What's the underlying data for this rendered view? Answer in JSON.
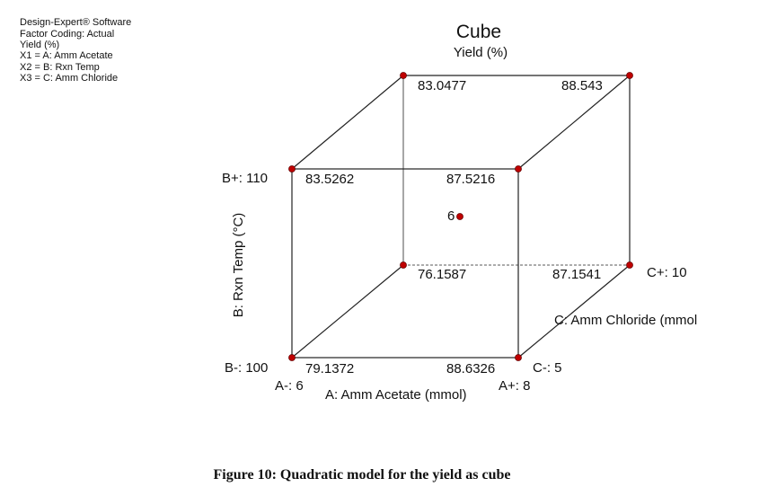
{
  "header": {
    "lines": [
      "Design-Expert® Software",
      "Factor Coding: Actual",
      "Yield (%)",
      "X1 = A: Amm Acetate",
      "X2 = B: Rxn Temp",
      "X3 = C: Amm Chloride"
    ]
  },
  "title": "Cube",
  "subtitle": "Yield (%)",
  "corners": {
    "back_top_left": "83.0477",
    "back_top_right": "88.543",
    "front_top_left": "83.5262",
    "front_top_right": "87.5216",
    "back_bottom_left": "76.1587",
    "back_bottom_right": "87.1541",
    "front_bottom_left": "79.1372",
    "front_bottom_right": "88.6326"
  },
  "center_points": "6",
  "axes": {
    "b_label": "B: Rxn Temp (°C)",
    "a_label": "A: Amm Acetate (mmol)",
    "c_label": "C: Amm Chloride (mmol",
    "b_high": "B+: 110",
    "b_low": "B-: 100",
    "a_low": "A-: 6",
    "a_high": "A+: 8",
    "c_low": "C-: 5",
    "c_high": "C+: 10"
  },
  "caption": "Figure 10: Quadratic model for the yield as cube"
}
